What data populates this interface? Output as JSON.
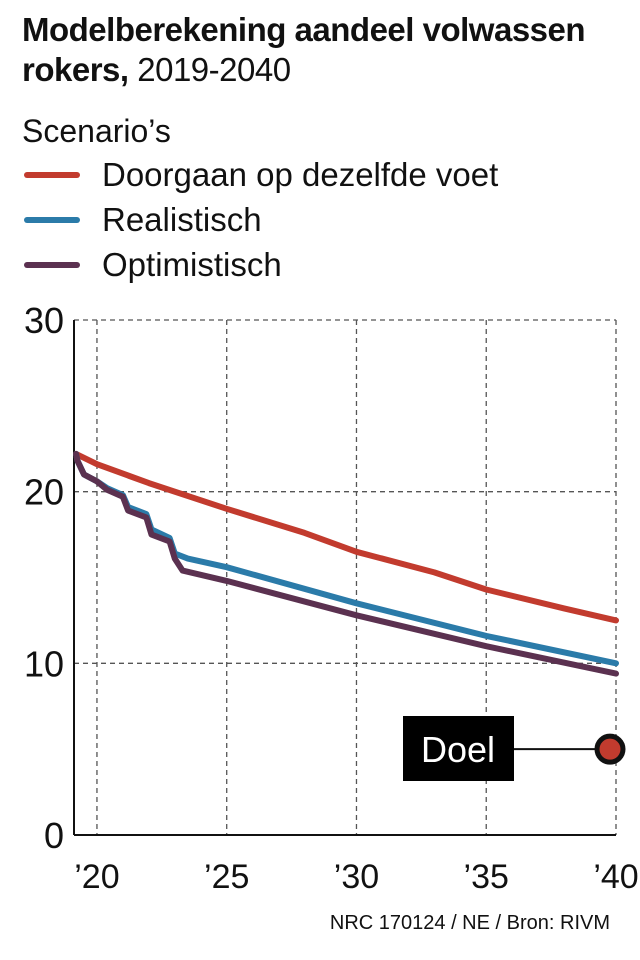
{
  "title_bold": "Modelberekening aandeel volwassen rokers,",
  "title_range": " 2019-2040",
  "legend_title": "Scenario’s",
  "source": "NRC 170124 / NE / Bron: RIVM",
  "chart_data": {
    "type": "line",
    "xlim": [
      2019,
      2040
    ],
    "ylim": [
      0,
      30
    ],
    "yticks": [
      0,
      10,
      20,
      30
    ],
    "xticks": [
      2020,
      2025,
      2030,
      2035,
      2040
    ],
    "xtick_labels": [
      "’20",
      "’25",
      "’30",
      "’35",
      "’40"
    ],
    "grid": true,
    "legend": "top",
    "series": [
      {
        "name": "Doorgaan op dezelfde voet",
        "color": "#c23b2e",
        "x": [
          2019,
          2020,
          2022,
          2025,
          2028,
          2030,
          2033,
          2035,
          2038,
          2040
        ],
        "y": [
          22.2,
          21.6,
          20.5,
          19.0,
          17.6,
          16.5,
          15.3,
          14.3,
          13.2,
          12.5
        ]
      },
      {
        "name": "Realistisch",
        "color": "#2b7ba9",
        "x": [
          2019,
          2019.25,
          2019.5,
          2020,
          2020.4,
          2021,
          2021.2,
          2021.9,
          2022.1,
          2022.8,
          2023,
          2023.5,
          2025,
          2030,
          2035,
          2040
        ],
        "y": [
          22.2,
          21.8,
          21.0,
          20.6,
          20.2,
          19.8,
          19.1,
          18.7,
          17.8,
          17.3,
          16.4,
          16.1,
          15.6,
          13.5,
          11.6,
          10.0
        ]
      },
      {
        "name": "Optimistisch",
        "color": "#5b3150",
        "x": [
          2019,
          2019.25,
          2019.5,
          2020,
          2020.4,
          2021,
          2021.2,
          2021.9,
          2022.1,
          2022.8,
          2023,
          2023.3,
          2025,
          2030,
          2035,
          2040
        ],
        "y": [
          22.2,
          21.8,
          21.0,
          20.6,
          20.1,
          19.7,
          18.9,
          18.5,
          17.5,
          17.1,
          16.1,
          15.4,
          14.8,
          12.8,
          11.0,
          9.4
        ]
      }
    ],
    "annotation": {
      "label": "Doel",
      "x": 2040,
      "y": 5,
      "color": "#c23b2e"
    }
  }
}
